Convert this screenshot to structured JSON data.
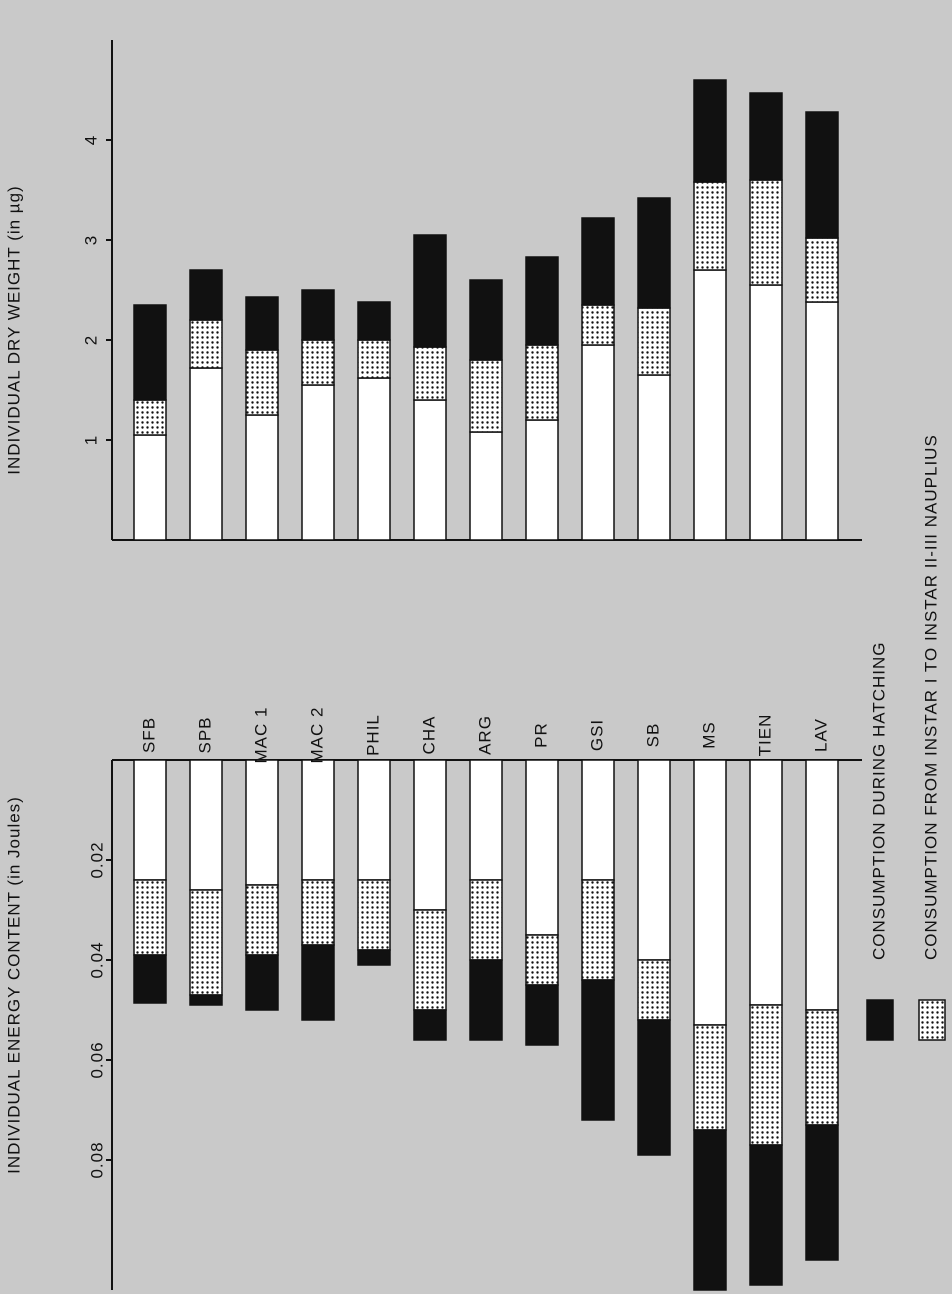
{
  "chart_data": [
    {
      "type": "bar",
      "stacked": true,
      "y_label": "INDIVIDUAL DRY WEIGHT (in µg)",
      "categories": [
        "SFB",
        "SPB",
        "MAC 1",
        "MAC 2",
        "PHIL",
        "CHA",
        "ARG",
        "PR",
        "GSI",
        "SB",
        "MS",
        "TIEN",
        "LAV"
      ],
      "ylim": [
        0,
        5
      ],
      "yticks": [
        1,
        2,
        3,
        4
      ],
      "series": [
        {
          "color": "#ffffff",
          "values": [
            1.05,
            1.72,
            1.25,
            1.55,
            1.62,
            1.4,
            1.08,
            1.2,
            1.95,
            1.65,
            2.7,
            2.55,
            2.38
          ]
        },
        {
          "name": "CONSUMPTION FROM INSTAR I TO INSTAR II-III NAUPLIUS",
          "color": "#111111",
          "pattern": "dots",
          "values": [
            0.35,
            0.48,
            0.65,
            0.45,
            0.38,
            0.53,
            0.72,
            0.75,
            0.4,
            0.67,
            0.88,
            1.05,
            0.64
          ]
        },
        {
          "name": "CONSUMPTION DURING HATCHING",
          "color": "#111111",
          "values": [
            0.95,
            0.5,
            0.53,
            0.5,
            0.38,
            1.12,
            0.8,
            0.88,
            0.87,
            1.1,
            1.02,
            0.87,
            1.26
          ]
        }
      ]
    },
    {
      "type": "bar",
      "stacked": true,
      "inverted": true,
      "y_label": "INDIVIDUAL ENERGY CONTENT (in Joules)",
      "ylim": [
        0,
        0.106
      ],
      "yticks": [
        0.02,
        0.04,
        0.06,
        0.08
      ],
      "series": [
        {
          "color": "#ffffff",
          "values": [
            0.024,
            0.026,
            0.025,
            0.024,
            0.024,
            0.03,
            0.024,
            0.035,
            0.024,
            0.04,
            0.053,
            0.049,
            0.05
          ]
        },
        {
          "color": "#111111",
          "pattern": "dots",
          "values": [
            0.015,
            0.021,
            0.014,
            0.013,
            0.014,
            0.02,
            0.016,
            0.01,
            0.02,
            0.012,
            0.021,
            0.028,
            0.023
          ]
        },
        {
          "color": "#111111",
          "values": [
            0.0096,
            0.002,
            0.011,
            0.015,
            0.003,
            0.006,
            0.016,
            0.012,
            0.028,
            0.027,
            0.032,
            0.028,
            0.027
          ]
        }
      ]
    }
  ]
}
